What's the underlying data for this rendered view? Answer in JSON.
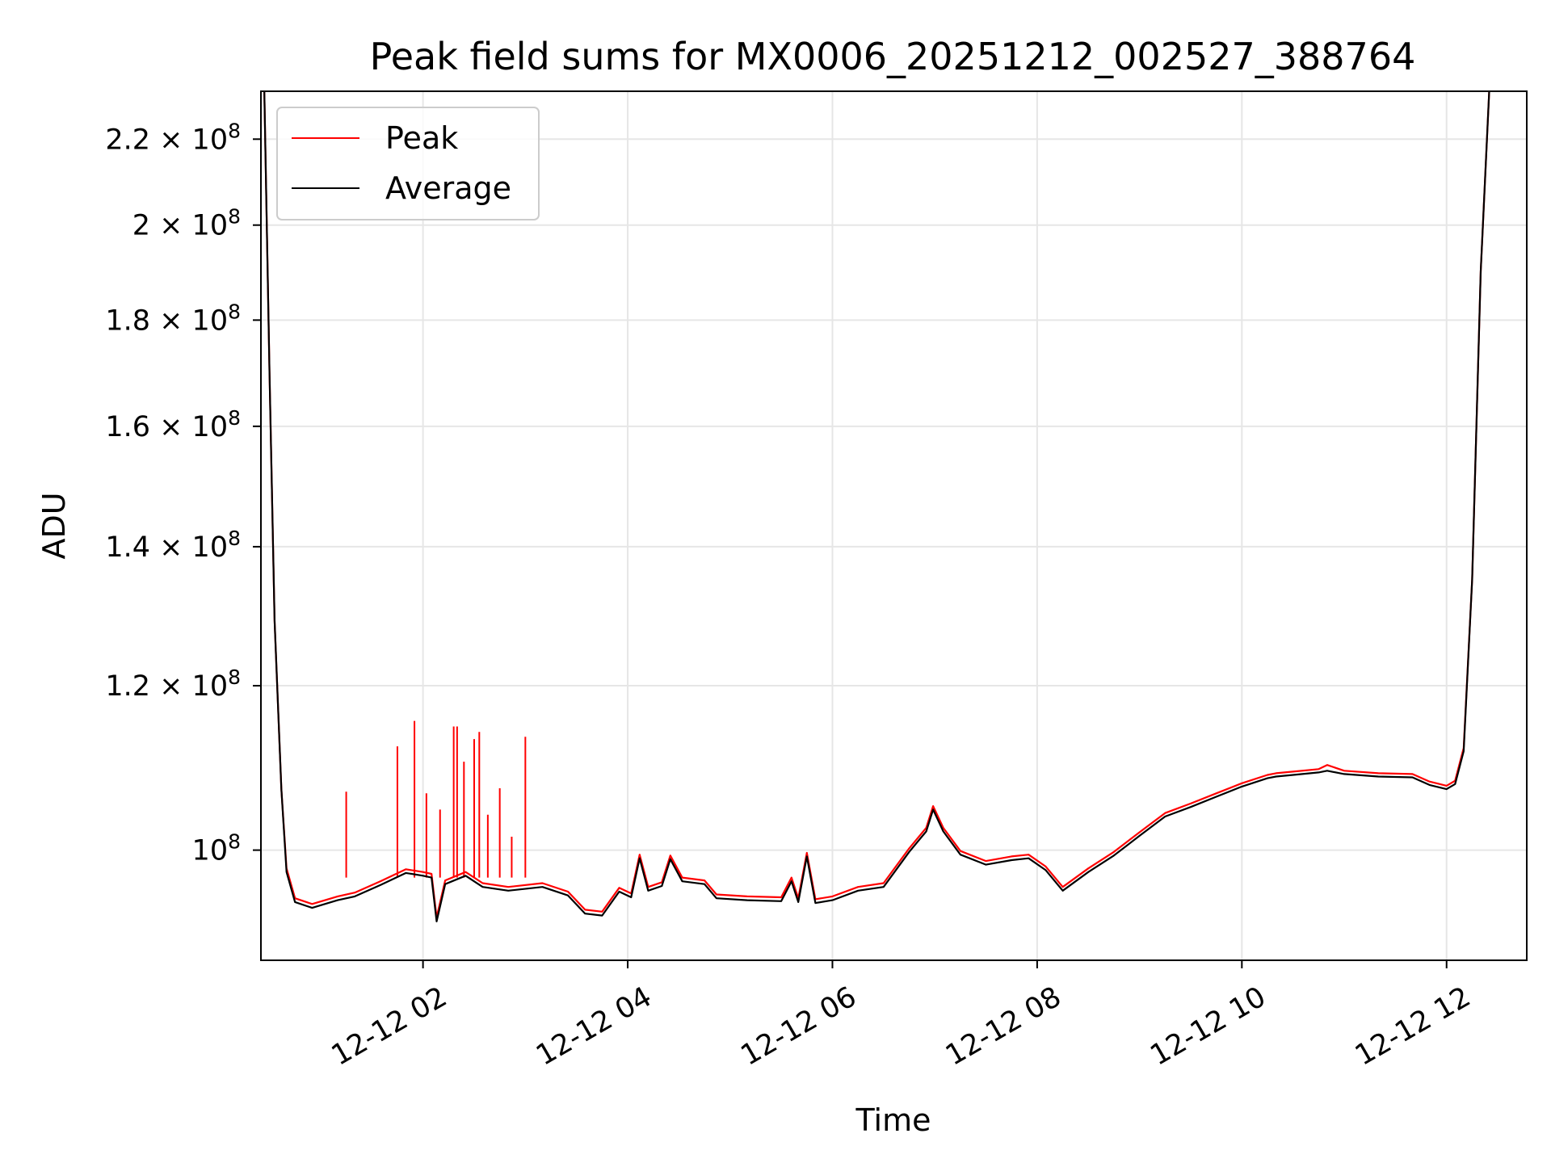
{
  "chart_data": {
    "type": "line",
    "title": "Peak field sums for MX0006_20251212_002527_388764",
    "xlabel": "Time",
    "ylabel": "ADU",
    "y_scale": "log",
    "ylim": [
      88500000,
      232000000
    ],
    "xlim": [
      "2025-12-12 00:25",
      "2025-12-12 12:47"
    ],
    "grid": true,
    "legend_position": "top-left",
    "x_ticks": [
      {
        "value": "2025-12-12 02:00",
        "label": "12-12 02"
      },
      {
        "value": "2025-12-12 04:00",
        "label": "12-12 04"
      },
      {
        "value": "2025-12-12 06:00",
        "label": "12-12 06"
      },
      {
        "value": "2025-12-12 08:00",
        "label": "12-12 08"
      },
      {
        "value": "2025-12-12 10:00",
        "label": "12-12 10"
      },
      {
        "value": "2025-12-12 12:00",
        "label": "12-12 12"
      }
    ],
    "y_ticks": [
      {
        "value": 100000000,
        "mantissa": "10",
        "exponent": "8"
      },
      {
        "value": 120000000,
        "mantissa": "1.2 × 10",
        "exponent": "8"
      },
      {
        "value": 140000000,
        "mantissa": "1.4 × 10",
        "exponent": "8"
      },
      {
        "value": 160000000,
        "mantissa": "1.6 × 10",
        "exponent": "8"
      },
      {
        "value": 180000000,
        "mantissa": "1.8 × 10",
        "exponent": "8"
      },
      {
        "value": 200000000,
        "mantissa": "2 × 10",
        "exponent": "8"
      },
      {
        "value": 220000000,
        "mantissa": "2.2 × 10",
        "exponent": "8"
      }
    ],
    "series": [
      {
        "name": "Peak",
        "color": "#ff0000",
        "points": [
          [
            "2025-12-12 00:27",
            232000000
          ],
          [
            "2025-12-12 00:30",
            170000000
          ],
          [
            "2025-12-12 00:33",
            129000000
          ],
          [
            "2025-12-12 00:37",
            107000000
          ],
          [
            "2025-12-12 00:40",
            98000000
          ],
          [
            "2025-12-12 00:45",
            94800000
          ],
          [
            "2025-12-12 00:55",
            94200000
          ],
          [
            "2025-12-12 01:10",
            95000000
          ],
          [
            "2025-12-12 01:20",
            95400000
          ],
          [
            "2025-12-12 01:35",
            96600000
          ],
          [
            "2025-12-12 01:50",
            97900000
          ],
          [
            "2025-12-12 02:00",
            97600000
          ],
          [
            "2025-12-12 02:05",
            97400000
          ],
          [
            "2025-12-12 02:08",
            92800000
          ],
          [
            "2025-12-12 02:13",
            96700000
          ],
          [
            "2025-12-12 02:25",
            97600000
          ],
          [
            "2025-12-12 02:35",
            96400000
          ],
          [
            "2025-12-12 02:50",
            96000000
          ],
          [
            "2025-12-12 03:10",
            96400000
          ],
          [
            "2025-12-12 03:25",
            95500000
          ],
          [
            "2025-12-12 03:35",
            93600000
          ],
          [
            "2025-12-12 03:45",
            93400000
          ],
          [
            "2025-12-12 03:55",
            95900000
          ],
          [
            "2025-12-12 04:02",
            95300000
          ],
          [
            "2025-12-12 04:07",
            99500000
          ],
          [
            "2025-12-12 04:12",
            96000000
          ],
          [
            "2025-12-12 04:20",
            96500000
          ],
          [
            "2025-12-12 04:25",
            99400000
          ],
          [
            "2025-12-12 04:32",
            97000000
          ],
          [
            "2025-12-12 04:45",
            96700000
          ],
          [
            "2025-12-12 04:52",
            95200000
          ],
          [
            "2025-12-12 05:10",
            95000000
          ],
          [
            "2025-12-12 05:30",
            94900000
          ],
          [
            "2025-12-12 05:36",
            97000000
          ],
          [
            "2025-12-12 05:40",
            94800000
          ],
          [
            "2025-12-12 05:45",
            99700000
          ],
          [
            "2025-12-12 05:50",
            94700000
          ],
          [
            "2025-12-12 06:00",
            95000000
          ],
          [
            "2025-12-12 06:15",
            96000000
          ],
          [
            "2025-12-12 06:30",
            96400000
          ],
          [
            "2025-12-12 06:45",
            100200000
          ],
          [
            "2025-12-12 06:55",
            102500000
          ],
          [
            "2025-12-12 06:59",
            105000000
          ],
          [
            "2025-12-12 07:05",
            102500000
          ],
          [
            "2025-12-12 07:15",
            99900000
          ],
          [
            "2025-12-12 07:30",
            98800000
          ],
          [
            "2025-12-12 07:45",
            99300000
          ],
          [
            "2025-12-12 07:55",
            99500000
          ],
          [
            "2025-12-12 08:05",
            98200000
          ],
          [
            "2025-12-12 08:15",
            96000000
          ],
          [
            "2025-12-12 08:30",
            98000000
          ],
          [
            "2025-12-12 08:45",
            99800000
          ],
          [
            "2025-12-12 09:00",
            102000000
          ],
          [
            "2025-12-12 09:15",
            104200000
          ],
          [
            "2025-12-12 09:30",
            105300000
          ],
          [
            "2025-12-12 09:45",
            106500000
          ],
          [
            "2025-12-12 10:00",
            107700000
          ],
          [
            "2025-12-12 10:15",
            108700000
          ],
          [
            "2025-12-12 10:20",
            108900000
          ],
          [
            "2025-12-12 10:30",
            109100000
          ],
          [
            "2025-12-12 10:45",
            109400000
          ],
          [
            "2025-12-12 10:50",
            109900000
          ],
          [
            "2025-12-12 11:00",
            109200000
          ],
          [
            "2025-12-12 11:20",
            108900000
          ],
          [
            "2025-12-12 11:40",
            108800000
          ],
          [
            "2025-12-12 11:50",
            107900000
          ],
          [
            "2025-12-12 12:00",
            107400000
          ],
          [
            "2025-12-12 12:05",
            108000000
          ],
          [
            "2025-12-12 12:10",
            112000000
          ],
          [
            "2025-12-12 12:15",
            135000000
          ],
          [
            "2025-12-12 12:20",
            190000000
          ],
          [
            "2025-12-12 12:25",
            232000000
          ]
        ],
        "spikes": [
          [
            "2025-12-12 01:15",
            106700000
          ],
          [
            "2025-12-12 01:45",
            112200000
          ],
          [
            "2025-12-12 01:55",
            115400000
          ],
          [
            "2025-12-12 02:02",
            106500000
          ],
          [
            "2025-12-12 02:10",
            104600000
          ],
          [
            "2025-12-12 02:18",
            114700000
          ],
          [
            "2025-12-12 02:20",
            114700000
          ],
          [
            "2025-12-12 02:24",
            110300000
          ],
          [
            "2025-12-12 02:30",
            113100000
          ],
          [
            "2025-12-12 02:33",
            114000000
          ],
          [
            "2025-12-12 02:38",
            104000000
          ],
          [
            "2025-12-12 02:45",
            107100000
          ],
          [
            "2025-12-12 02:52",
            101500000
          ],
          [
            "2025-12-12 03:00",
            113400000
          ]
        ]
      },
      {
        "name": "Average",
        "color": "#000000",
        "points": [
          [
            "2025-12-12 00:27",
            232000000
          ],
          [
            "2025-12-12 00:30",
            170000000
          ],
          [
            "2025-12-12 00:33",
            129000000
          ],
          [
            "2025-12-12 00:37",
            107000000
          ],
          [
            "2025-12-12 00:40",
            97600000
          ],
          [
            "2025-12-12 00:45",
            94400000
          ],
          [
            "2025-12-12 00:55",
            93800000
          ],
          [
            "2025-12-12 01:10",
            94600000
          ],
          [
            "2025-12-12 01:20",
            95000000
          ],
          [
            "2025-12-12 01:35",
            96200000
          ],
          [
            "2025-12-12 01:50",
            97500000
          ],
          [
            "2025-12-12 02:00",
            97200000
          ],
          [
            "2025-12-12 02:05",
            97000000
          ],
          [
            "2025-12-12 02:08",
            92400000
          ],
          [
            "2025-12-12 02:13",
            96300000
          ],
          [
            "2025-12-12 02:25",
            97200000
          ],
          [
            "2025-12-12 02:35",
            96000000
          ],
          [
            "2025-12-12 02:50",
            95600000
          ],
          [
            "2025-12-12 03:10",
            96000000
          ],
          [
            "2025-12-12 03:25",
            95100000
          ],
          [
            "2025-12-12 03:35",
            93200000
          ],
          [
            "2025-12-12 03:45",
            93000000
          ],
          [
            "2025-12-12 03:55",
            95500000
          ],
          [
            "2025-12-12 04:02",
            94900000
          ],
          [
            "2025-12-12 04:07",
            99100000
          ],
          [
            "2025-12-12 04:12",
            95600000
          ],
          [
            "2025-12-12 04:20",
            96100000
          ],
          [
            "2025-12-12 04:25",
            99000000
          ],
          [
            "2025-12-12 04:32",
            96600000
          ],
          [
            "2025-12-12 04:45",
            96300000
          ],
          [
            "2025-12-12 04:52",
            94800000
          ],
          [
            "2025-12-12 05:10",
            94600000
          ],
          [
            "2025-12-12 05:30",
            94500000
          ],
          [
            "2025-12-12 05:36",
            96600000
          ],
          [
            "2025-12-12 05:40",
            94400000
          ],
          [
            "2025-12-12 05:45",
            99300000
          ],
          [
            "2025-12-12 05:50",
            94300000
          ],
          [
            "2025-12-12 06:00",
            94600000
          ],
          [
            "2025-12-12 06:15",
            95600000
          ],
          [
            "2025-12-12 06:30",
            96000000
          ],
          [
            "2025-12-12 06:45",
            99800000
          ],
          [
            "2025-12-12 06:55",
            102100000
          ],
          [
            "2025-12-12 06:59",
            104600000
          ],
          [
            "2025-12-12 07:05",
            102100000
          ],
          [
            "2025-12-12 07:15",
            99500000
          ],
          [
            "2025-12-12 07:30",
            98400000
          ],
          [
            "2025-12-12 07:45",
            98900000
          ],
          [
            "2025-12-12 07:55",
            99100000
          ],
          [
            "2025-12-12 08:05",
            97800000
          ],
          [
            "2025-12-12 08:15",
            95600000
          ],
          [
            "2025-12-12 08:30",
            97600000
          ],
          [
            "2025-12-12 08:45",
            99400000
          ],
          [
            "2025-12-12 09:00",
            101600000
          ],
          [
            "2025-12-12 09:15",
            103800000
          ],
          [
            "2025-12-12 09:30",
            104900000
          ],
          [
            "2025-12-12 09:45",
            106100000
          ],
          [
            "2025-12-12 10:00",
            107300000
          ],
          [
            "2025-12-12 10:15",
            108300000
          ],
          [
            "2025-12-12 10:20",
            108500000
          ],
          [
            "2025-12-12 10:30",
            108700000
          ],
          [
            "2025-12-12 10:45",
            109000000
          ],
          [
            "2025-12-12 10:50",
            109200000
          ],
          [
            "2025-12-12 11:00",
            108800000
          ],
          [
            "2025-12-12 11:20",
            108500000
          ],
          [
            "2025-12-12 11:40",
            108400000
          ],
          [
            "2025-12-12 11:50",
            107500000
          ],
          [
            "2025-12-12 12:00",
            107000000
          ],
          [
            "2025-12-12 12:05",
            107600000
          ],
          [
            "2025-12-12 12:10",
            111600000
          ],
          [
            "2025-12-12 12:15",
            135000000
          ],
          [
            "2025-12-12 12:20",
            190000000
          ],
          [
            "2025-12-12 12:25",
            232000000
          ]
        ]
      }
    ]
  }
}
